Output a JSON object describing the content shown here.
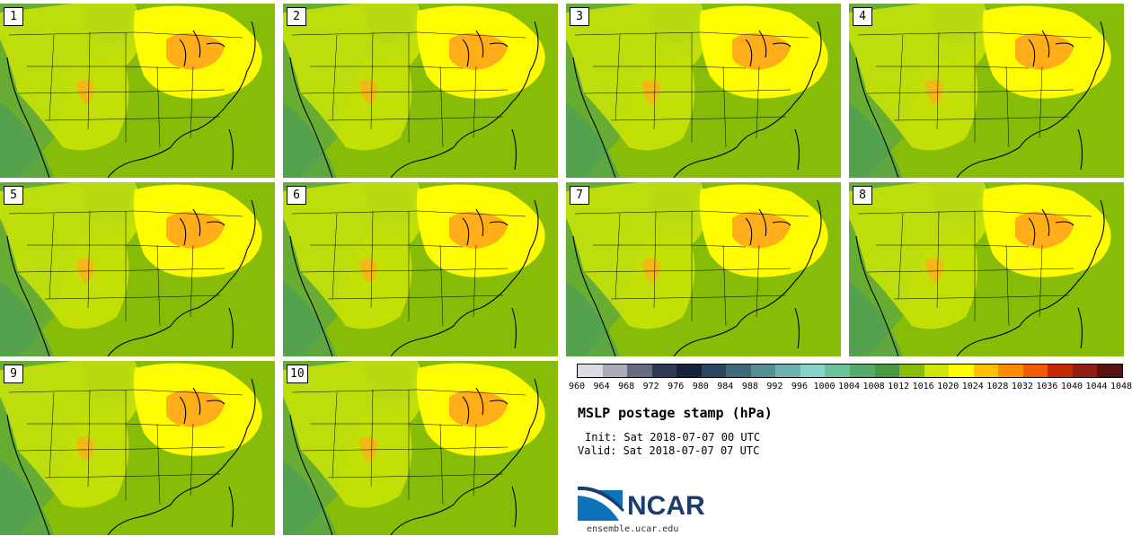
{
  "panels": [
    {
      "label": "1"
    },
    {
      "label": "2"
    },
    {
      "label": "3"
    },
    {
      "label": "4"
    },
    {
      "label": "5"
    },
    {
      "label": "6"
    },
    {
      "label": "7"
    },
    {
      "label": "8"
    },
    {
      "label": "9"
    },
    {
      "label": "10"
    }
  ],
  "colorbar": {
    "ticks": [
      "960",
      "964",
      "968",
      "972",
      "976",
      "980",
      "984",
      "988",
      "992",
      "996",
      "1000",
      "1004",
      "1008",
      "1012",
      "1016",
      "1020",
      "1024",
      "1028",
      "1032",
      "1036",
      "1040",
      "1044",
      "1048"
    ],
    "colors": [
      "#d9dde3",
      "#a9acb8",
      "#676a82",
      "#2e3a55",
      "#15233d",
      "#2a4661",
      "#3f6978",
      "#558f93",
      "#6fb0b1",
      "#86d4c7",
      "#6ac19a",
      "#53aa6b",
      "#479a3f",
      "#87bd08",
      "#cde606",
      "#fffb00",
      "#ffc000",
      "#ff8c00",
      "#f05a00",
      "#c42800",
      "#8f1d12",
      "#5a1410"
    ]
  },
  "title": "MSLP postage stamp (hPa)",
  "init": "Init: Sat 2018-07-07 00 UTC",
  "valid": "Valid: Sat 2018-07-07 07 UTC",
  "logo_text": "NCAR",
  "website": "ensemble.ucar.edu",
  "colors": {
    "low_green": "#4d9e58",
    "mid_green": "#87bd08",
    "yellow_green": "#cde606",
    "yellow": "#fffb00",
    "orange": "#ffae1a",
    "ncar_blue": "#1a3c6e"
  }
}
